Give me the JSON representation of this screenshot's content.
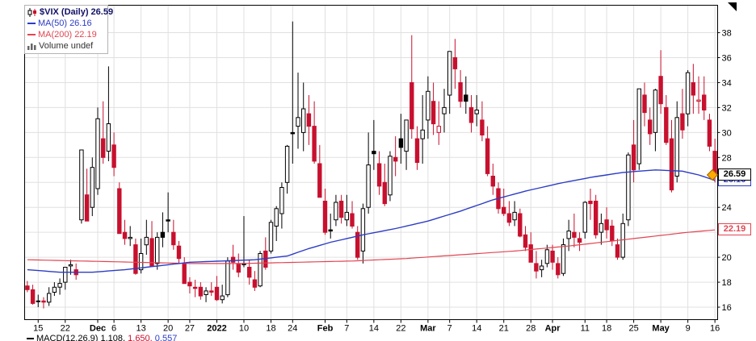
{
  "legend": {
    "title_symbol": "$VIX (Daily)",
    "title_value": "26.59",
    "ma50_label": "MA(50)",
    "ma50_value": "26.16",
    "ma200_label": "MA(200)",
    "ma200_value": "22.19",
    "volume_label": "Volume",
    "volume_value": "undef"
  },
  "price_axis": {
    "last_label": "26.59",
    "ma50_label": "26.16",
    "ma200_label": "22.19"
  },
  "footer": {
    "macd_label": "MACD(12,26,9)",
    "macd_value_1": "1.108,",
    "macd_value_2": "1.650,",
    "macd_value_3": "0.557"
  },
  "colors": {
    "candle_up": "#000000",
    "candle_down": "#c8102e",
    "ma50": "#2c3cc4",
    "ma200": "#e04653",
    "grid": "#e0e0e0",
    "title": "#111166",
    "marker": "#ffaa00"
  },
  "chart_data": {
    "type": "candlestick",
    "title": "$VIX (Daily) 26.59",
    "symbol": "$VIX",
    "timeframe": "Daily",
    "last_close": 26.59,
    "ma50_last": 26.16,
    "ma200_last": 22.19,
    "ylim": [
      15.0,
      40.2
    ],
    "y_ticks": [
      38,
      36,
      34,
      32,
      30,
      28,
      26,
      24,
      22,
      20,
      18,
      16
    ],
    "x_ticks": [
      {
        "i": 2,
        "label": "15",
        "bold": false
      },
      {
        "i": 7,
        "label": "22",
        "bold": false
      },
      {
        "i": 13,
        "label": "Dec",
        "bold": true
      },
      {
        "i": 16,
        "label": "6",
        "bold": false
      },
      {
        "i": 21,
        "label": "13",
        "bold": false
      },
      {
        "i": 26,
        "label": "20",
        "bold": false
      },
      {
        "i": 30,
        "label": "27",
        "bold": false
      },
      {
        "i": 35,
        "label": "2022",
        "bold": true
      },
      {
        "i": 40,
        "label": "10",
        "bold": false
      },
      {
        "i": 45,
        "label": "18",
        "bold": false
      },
      {
        "i": 49,
        "label": "24",
        "bold": false
      },
      {
        "i": 55,
        "label": "Feb",
        "bold": true
      },
      {
        "i": 59,
        "label": "7",
        "bold": false
      },
      {
        "i": 64,
        "label": "14",
        "bold": false
      },
      {
        "i": 69,
        "label": "22",
        "bold": false
      },
      {
        "i": 74,
        "label": "Mar",
        "bold": true
      },
      {
        "i": 78,
        "label": "7",
        "bold": false
      },
      {
        "i": 83,
        "label": "14",
        "bold": false
      },
      {
        "i": 88,
        "label": "21",
        "bold": false
      },
      {
        "i": 93,
        "label": "28",
        "bold": false
      },
      {
        "i": 97,
        "label": "Apr",
        "bold": true
      },
      {
        "i": 103,
        "label": "11",
        "bold": false
      },
      {
        "i": 107,
        "label": "18",
        "bold": false
      },
      {
        "i": 112,
        "label": "25",
        "bold": false
      },
      {
        "i": 117,
        "label": "May",
        "bold": true
      },
      {
        "i": 122,
        "label": "9",
        "bold": false
      },
      {
        "i": 127,
        "label": "16",
        "bold": false
      }
    ],
    "candles_ohlc": [
      [
        17.7,
        18.1,
        17.2,
        17.4
      ],
      [
        17.4,
        17.8,
        16.2,
        16.3
      ],
      [
        16.5,
        17.0,
        16.0,
        16.5
      ],
      [
        16.5,
        16.8,
        15.9,
        16.4
      ],
      [
        16.4,
        17.6,
        16.1,
        17.1
      ],
      [
        17.2,
        18.0,
        16.9,
        17.6
      ],
      [
        17.6,
        18.3,
        17.0,
        17.9
      ],
      [
        18.0,
        19.2,
        17.4,
        19.2
      ],
      [
        19.3,
        19.8,
        18.6,
        19.4
      ],
      [
        19.0,
        19.5,
        18.2,
        18.6
      ],
      [
        23.0,
        28.6,
        22.7,
        28.6
      ],
      [
        25.0,
        27.1,
        22.9,
        22.9
      ],
      [
        24.0,
        28.0,
        23.3,
        27.2
      ],
      [
        25.5,
        32.0,
        25.0,
        31.1
      ],
      [
        29.5,
        32.5,
        27.5,
        28.0
      ],
      [
        28.5,
        35.3,
        27.7,
        30.7
      ],
      [
        29.0,
        30.0,
        26.5,
        27.2
      ],
      [
        25.5,
        26.0,
        21.9,
        21.9
      ],
      [
        22.0,
        23.0,
        21.0,
        21.5
      ],
      [
        21.5,
        22.5,
        20.9,
        21.6
      ],
      [
        21.0,
        21.5,
        18.6,
        18.7
      ],
      [
        19.0,
        21.5,
        18.7,
        20.3
      ],
      [
        21.0,
        23.0,
        20.2,
        21.6
      ],
      [
        21.5,
        22.9,
        19.3,
        19.3
      ],
      [
        19.5,
        22.0,
        19.0,
        21.6
      ],
      [
        22.0,
        23.6,
        20.8,
        21.6
      ],
      [
        23.0,
        25.2,
        22.0,
        22.9
      ],
      [
        22.0,
        23.0,
        20.6,
        21.0
      ],
      [
        20.9,
        21.3,
        19.5,
        19.9
      ],
      [
        19.5,
        20.0,
        17.9,
        17.9
      ],
      [
        18.0,
        18.4,
        17.1,
        17.7
      ],
      [
        17.6,
        18.2,
        16.8,
        17.5
      ],
      [
        17.6,
        18.0,
        16.6,
        16.9
      ],
      [
        17.0,
        17.6,
        16.4,
        17.3
      ],
      [
        17.3,
        18.0,
        16.9,
        17.2
      ],
      [
        17.6,
        18.5,
        16.5,
        16.6
      ],
      [
        16.6,
        17.8,
        16.3,
        16.9
      ],
      [
        17.0,
        20.0,
        16.8,
        19.7
      ],
      [
        20.0,
        21.0,
        19.0,
        19.6
      ],
      [
        19.5,
        20.3,
        18.4,
        18.8
      ],
      [
        19.5,
        23.3,
        19.2,
        19.4
      ],
      [
        19.2,
        19.8,
        17.8,
        18.4
      ],
      [
        18.2,
        18.9,
        17.3,
        17.6
      ],
      [
        17.7,
        20.5,
        17.6,
        20.3
      ],
      [
        20.5,
        21.6,
        19.0,
        19.2
      ],
      [
        20.5,
        23.0,
        20.3,
        22.8
      ],
      [
        22.5,
        24.1,
        21.3,
        23.9
      ],
      [
        23.5,
        26.0,
        22.3,
        25.6
      ],
      [
        26.0,
        29.0,
        25.1,
        28.9
      ],
      [
        30.0,
        38.9,
        27.5,
        29.9
      ],
      [
        30.5,
        34.8,
        28.7,
        31.2
      ],
      [
        30.0,
        34.0,
        28.5,
        31.9
      ],
      [
        31.5,
        33.0,
        29.0,
        30.5
      ],
      [
        30.5,
        32.5,
        27.5,
        27.7
      ],
      [
        27.5,
        29.0,
        24.8,
        24.8
      ],
      [
        24.5,
        25.5,
        21.8,
        22.0
      ],
      [
        22.2,
        23.5,
        21.5,
        22.1
      ],
      [
        23.0,
        25.0,
        22.5,
        24.4
      ],
      [
        24.5,
        25.0,
        22.7,
        23.2
      ],
      [
        23.0,
        25.0,
        22.5,
        23.6
      ],
      [
        23.5,
        24.5,
        22.3,
        22.5
      ],
      [
        22.0,
        22.5,
        19.8,
        20.0
      ],
      [
        20.5,
        24.3,
        19.5,
        23.9
      ],
      [
        24.0,
        30.0,
        23.5,
        27.4
      ],
      [
        28.5,
        31.0,
        27.0,
        28.3
      ],
      [
        27.5,
        28.5,
        25.0,
        25.7
      ],
      [
        26.0,
        27.5,
        24.1,
        24.3
      ],
      [
        25.0,
        28.5,
        24.5,
        28.1
      ],
      [
        28.0,
        29.7,
        26.5,
        27.7
      ],
      [
        29.5,
        31.5,
        27.5,
        28.8
      ],
      [
        28.5,
        31.0,
        27.0,
        31.0
      ],
      [
        34.0,
        37.8,
        29.5,
        30.3
      ],
      [
        29.5,
        30.5,
        27.0,
        27.6
      ],
      [
        29.5,
        33.0,
        27.5,
        30.2
      ],
      [
        31.0,
        34.5,
        29.5,
        33.3
      ],
      [
        32.5,
        34.0,
        29.8,
        30.7
      ],
      [
        30.0,
        32.5,
        29.0,
        30.5
      ],
      [
        31.5,
        33.5,
        30.0,
        32.0
      ],
      [
        33.0,
        36.5,
        31.5,
        36.5
      ],
      [
        36.0,
        37.5,
        33.5,
        35.1
      ],
      [
        34.0,
        35.0,
        32.0,
        32.5
      ],
      [
        33.0,
        34.5,
        31.5,
        32.5
      ],
      [
        32.0,
        33.0,
        30.0,
        30.8
      ],
      [
        31.5,
        33.0,
        30.5,
        31.8
      ],
      [
        31.0,
        32.5,
        29.3,
        29.8
      ],
      [
        29.5,
        30.5,
        26.5,
        26.7
      ],
      [
        26.5,
        27.5,
        25.0,
        25.7
      ],
      [
        25.5,
        26.0,
        23.5,
        23.9
      ],
      [
        24.0,
        25.5,
        23.3,
        23.5
      ],
      [
        23.5,
        24.5,
        22.5,
        22.8
      ],
      [
        23.0,
        24.5,
        22.5,
        23.6
      ],
      [
        23.5,
        23.9,
        21.6,
        21.7
      ],
      [
        21.8,
        22.5,
        20.5,
        20.8
      ],
      [
        21.0,
        22.0,
        19.6,
        19.6
      ],
      [
        19.5,
        20.5,
        18.3,
        18.9
      ],
      [
        19.0,
        19.8,
        18.4,
        19.3
      ],
      [
        19.5,
        21.0,
        19.2,
        20.6
      ],
      [
        20.5,
        21.0,
        19.0,
        19.6
      ],
      [
        19.5,
        20.0,
        18.3,
        18.6
      ],
      [
        18.7,
        21.5,
        18.5,
        21.0
      ],
      [
        21.5,
        23.0,
        20.5,
        22.1
      ],
      [
        22.0,
        23.5,
        20.8,
        21.6
      ],
      [
        21.5,
        22.0,
        20.5,
        21.2
      ],
      [
        22.0,
        24.5,
        21.5,
        24.4
      ],
      [
        24.5,
        25.5,
        23.0,
        24.3
      ],
      [
        24.5,
        25.0,
        21.5,
        21.8
      ],
      [
        22.0,
        23.5,
        21.0,
        22.7
      ],
      [
        23.0,
        24.0,
        21.5,
        22.2
      ],
      [
        22.5,
        23.0,
        20.9,
        21.3
      ],
      [
        21.0,
        21.5,
        19.8,
        20.0
      ],
      [
        20.0,
        23.5,
        19.8,
        22.7
      ],
      [
        23.0,
        28.4,
        22.5,
        28.2
      ],
      [
        29.0,
        31.0,
        26.0,
        27.0
      ],
      [
        27.5,
        33.5,
        27.0,
        33.5
      ],
      [
        33.0,
        34.0,
        30.5,
        31.6
      ],
      [
        31.0,
        32.0,
        29.0,
        29.9
      ],
      [
        30.0,
        33.5,
        28.5,
        33.4
      ],
      [
        34.5,
        36.6,
        31.5,
        32.3
      ],
      [
        32.0,
        33.0,
        29.0,
        29.2
      ],
      [
        29.5,
        31.0,
        25.2,
        25.4
      ],
      [
        26.5,
        32.5,
        26.0,
        31.2
      ],
      [
        31.5,
        33.5,
        29.5,
        30.2
      ],
      [
        31.5,
        35.0,
        30.5,
        34.8
      ],
      [
        34.0,
        35.5,
        31.5,
        33.0
      ],
      [
        32.5,
        34.5,
        31.5,
        32.6
      ],
      [
        33.0,
        34.5,
        31.0,
        31.8
      ],
      [
        31.0,
        31.5,
        28.5,
        28.9
      ],
      [
        28.5,
        29.5,
        26.0,
        26.6
      ]
    ],
    "ma50_points": [
      [
        0,
        19.0
      ],
      [
        6,
        18.8
      ],
      [
        12,
        18.8
      ],
      [
        18,
        19.0
      ],
      [
        24,
        19.3
      ],
      [
        30,
        19.6
      ],
      [
        36,
        19.7
      ],
      [
        42,
        19.8
      ],
      [
        48,
        20.1
      ],
      [
        52,
        20.7
      ],
      [
        56,
        21.2
      ],
      [
        62,
        21.8
      ],
      [
        68,
        22.3
      ],
      [
        74,
        22.9
      ],
      [
        80,
        23.7
      ],
      [
        86,
        24.6
      ],
      [
        92,
        25.3
      ],
      [
        98,
        25.9
      ],
      [
        104,
        26.4
      ],
      [
        110,
        26.8
      ],
      [
        116,
        27.0
      ],
      [
        121,
        26.9
      ],
      [
        124,
        26.6
      ],
      [
        127,
        26.16
      ]
    ],
    "ma200_points": [
      [
        0,
        19.8
      ],
      [
        10,
        19.7
      ],
      [
        20,
        19.6
      ],
      [
        30,
        19.5
      ],
      [
        40,
        19.5
      ],
      [
        50,
        19.6
      ],
      [
        60,
        19.7
      ],
      [
        70,
        19.9
      ],
      [
        80,
        20.2
      ],
      [
        90,
        20.5
      ],
      [
        100,
        20.9
      ],
      [
        108,
        21.3
      ],
      [
        116,
        21.7
      ],
      [
        122,
        22.0
      ],
      [
        127,
        22.19
      ]
    ]
  }
}
